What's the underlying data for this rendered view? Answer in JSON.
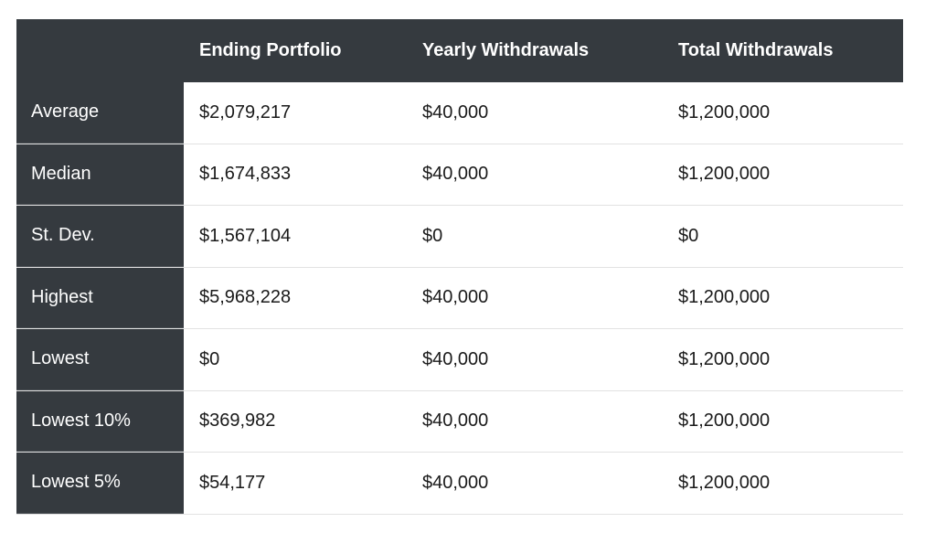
{
  "table": {
    "headers": [
      "",
      "Ending Portfolio",
      "Yearly Withdrawals",
      "Total Withdrawals"
    ],
    "rows": [
      {
        "label": "Average",
        "ending_portfolio": "$2,079,217",
        "yearly_withdrawals": "$40,000",
        "total_withdrawals": "$1,200,000"
      },
      {
        "label": "Median",
        "ending_portfolio": "$1,674,833",
        "yearly_withdrawals": "$40,000",
        "total_withdrawals": "$1,200,000"
      },
      {
        "label": "St. Dev.",
        "ending_portfolio": "$1,567,104",
        "yearly_withdrawals": "$0",
        "total_withdrawals": "$0"
      },
      {
        "label": "Highest",
        "ending_portfolio": "$5,968,228",
        "yearly_withdrawals": "$40,000",
        "total_withdrawals": "$1,200,000"
      },
      {
        "label": "Lowest",
        "ending_portfolio": "$0",
        "yearly_withdrawals": "$40,000",
        "total_withdrawals": "$1,200,000"
      },
      {
        "label": "Lowest 10%",
        "ending_portfolio": "$369,982",
        "yearly_withdrawals": "$40,000",
        "total_withdrawals": "$1,200,000"
      },
      {
        "label": "Lowest 5%",
        "ending_portfolio": "$54,177",
        "yearly_withdrawals": "$40,000",
        "total_withdrawals": "$1,200,000"
      }
    ]
  },
  "colors": {
    "header_bg": "#353a3f",
    "header_text": "#ffffff",
    "body_text": "#1a1a1a",
    "row_divider": "#e2e2e2"
  }
}
